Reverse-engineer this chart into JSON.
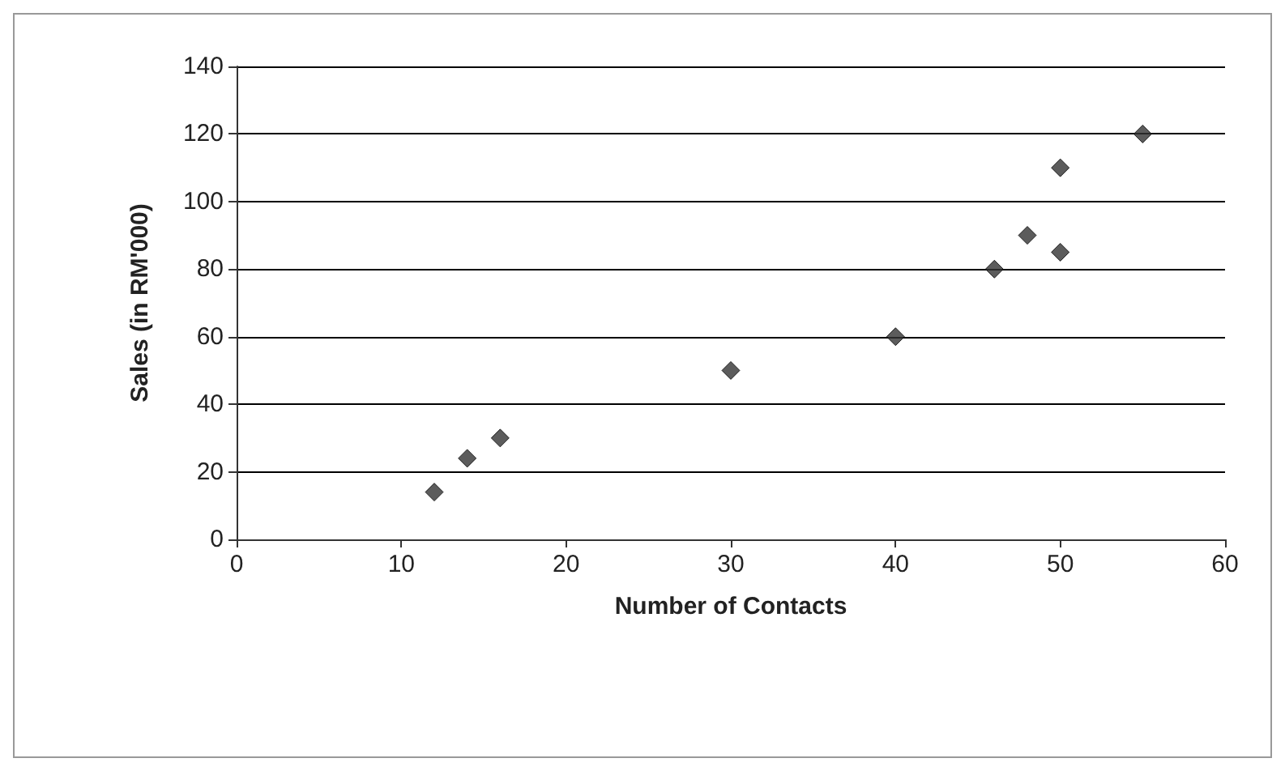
{
  "chart_data": {
    "type": "scatter",
    "xlabel": "Number of Contacts",
    "ylabel": "Sales (in RM'000)",
    "x": [
      12,
      14,
      16,
      30,
      40,
      46,
      48,
      50,
      50,
      55
    ],
    "values": [
      14,
      24,
      30,
      50,
      60,
      80,
      90,
      110,
      85,
      120
    ],
    "color": "#333333",
    "marker": "diamond",
    "xlim": [
      0,
      60
    ],
    "xticks": [
      0,
      10,
      20,
      30,
      40,
      50,
      60
    ],
    "ylim": [
      0,
      140
    ],
    "yticks": [
      0,
      20,
      40,
      60,
      80,
      100,
      120,
      140
    ],
    "grid": "y"
  }
}
